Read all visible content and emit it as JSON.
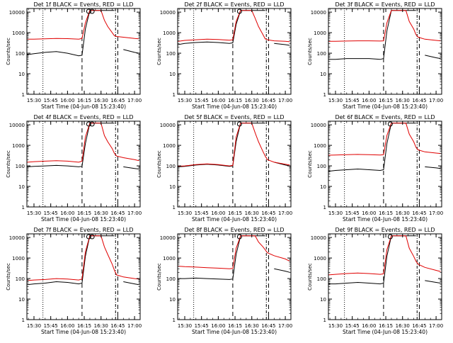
{
  "figure": {
    "background": "#ffffff",
    "axis_color": "#000000",
    "events_color": "#000000",
    "lld_color": "#e00000"
  },
  "chart_data": [
    {
      "type": "line",
      "title": "Det 1f BLACK = Events, RED = LLD",
      "xlabel": "Start Time (04-Jun-08 15:23:40)",
      "ylabel": "Counts/sec",
      "yscale": "log",
      "ylim": [
        1,
        15000
      ],
      "xlim": [
        "15:23:40",
        "17:05:00"
      ],
      "x_ticks": [
        "15:30",
        "15:45",
        "16:00",
        "16:15",
        "16:30",
        "16:45",
        "17:00"
      ],
      "y_ticks": [
        "1",
        "10",
        "100",
        "1000",
        "10000"
      ],
      "x": [
        "15:24",
        "15:30",
        "15:40",
        "15:50",
        "16:00",
        "16:10",
        "16:13",
        "16:16",
        "16:20",
        "16:27",
        "16:30",
        "16:33",
        "16:36",
        "16:40",
        "16:42",
        "16:44",
        "16:50",
        "17:00",
        "17:04"
      ],
      "series": [
        {
          "name": "Events",
          "color": "#000000",
          "values": [
            85,
            95,
            110,
            120,
            100,
            75,
            80,
            1500,
            12000,
            12000,
            12000,
            12000,
            12000,
            12000,
            12000,
            null,
            150,
            110,
            100
          ]
        },
        {
          "name": "LLD",
          "color": "#e00000",
          "values": [
            480,
            480,
            500,
            520,
            510,
            480,
            520,
            3000,
            12000,
            12000,
            12000,
            4000,
            2000,
            1000,
            700,
            650,
            600,
            520,
            500
          ]
        }
      ],
      "markers": {
        "dotted": [
          "15:38"
        ],
        "dashed": [
          "16:13",
          "16:45"
        ],
        "dash_dot": [
          "16:43"
        ],
        "circles": [
          "16:19",
          "16:22"
        ]
      }
    },
    {
      "type": "line",
      "title": "Det 2f BLACK = Events, RED = LLD",
      "xlabel": "Start Time (04-Jun-08 15:23:40)",
      "ylabel": "Counts/sec",
      "yscale": "log",
      "ylim": [
        1,
        15000
      ],
      "xlim": [
        "15:23:40",
        "17:05:00"
      ],
      "x_ticks": [
        "15:30",
        "15:45",
        "16:00",
        "16:15",
        "16:30",
        "16:45",
        "17:00"
      ],
      "y_ticks": [
        "1",
        "10",
        "100",
        "1000",
        "10000"
      ],
      "x": [
        "15:24",
        "15:30",
        "15:40",
        "15:50",
        "16:00",
        "16:10",
        "16:13",
        "16:16",
        "16:20",
        "16:27",
        "16:30",
        "16:33",
        "16:36",
        "16:40",
        "16:42",
        "16:44",
        "16:50",
        "17:00",
        "17:04"
      ],
      "series": [
        {
          "name": "Events",
          "color": "#000000",
          "values": [
            260,
            300,
            330,
            350,
            330,
            300,
            320,
            2500,
            12000,
            12000,
            12000,
            12000,
            12000,
            12000,
            12000,
            null,
            300,
            260,
            240
          ]
        },
        {
          "name": "LLD",
          "color": "#e00000",
          "values": [
            380,
            420,
            450,
            480,
            460,
            430,
            450,
            3500,
            12000,
            12000,
            12000,
            5000,
            2000,
            800,
            500,
            450,
            400,
            380,
            360
          ]
        }
      ],
      "markers": {
        "dotted": [
          "15:38"
        ],
        "dashed": [
          "16:13",
          "16:45"
        ],
        "dash_dot": [
          "16:43"
        ],
        "circles": [
          "16:19"
        ]
      }
    },
    {
      "type": "line",
      "title": "Det 3f BLACK = Events, RED = LLD",
      "xlabel": "Start Time (04-Jun-08 15:23:40)",
      "ylabel": "Counts/sec",
      "yscale": "log",
      "ylim": [
        1,
        15000
      ],
      "xlim": [
        "15:23:40",
        "17:05:00"
      ],
      "x_ticks": [
        "15:30",
        "15:45",
        "16:00",
        "16:15",
        "16:30",
        "16:45",
        "17:00"
      ],
      "y_ticks": [
        "1",
        "10",
        "100",
        "1000",
        "10000"
      ],
      "x": [
        "15:24",
        "15:30",
        "15:40",
        "15:50",
        "16:00",
        "16:10",
        "16:13",
        "16:16",
        "16:20",
        "16:27",
        "16:30",
        "16:33",
        "16:36",
        "16:40",
        "16:42",
        "16:44",
        "16:50",
        "17:00",
        "17:04"
      ],
      "series": [
        {
          "name": "Events",
          "color": "#000000",
          "values": [
            50,
            50,
            55,
            55,
            55,
            50,
            55,
            1200,
            12000,
            12000,
            12000,
            12000,
            12000,
            12000,
            12000,
            null,
            80,
            60,
            55
          ]
        },
        {
          "name": "LLD",
          "color": "#e00000",
          "values": [
            380,
            380,
            390,
            400,
            400,
            390,
            400,
            3000,
            12000,
            12000,
            12000,
            12000,
            3500,
            1500,
            800,
            600,
            480,
            420,
            400
          ]
        }
      ],
      "markers": {
        "dotted": [
          "15:38"
        ],
        "dashed": [
          "16:13",
          "16:45"
        ],
        "dash_dot": [
          "16:43"
        ],
        "circles": []
      }
    },
    {
      "type": "line",
      "title": "Det 4f BLACK = Events, RED = LLD",
      "xlabel": "Start Time (04-Jun-08 15:23:40)",
      "ylabel": "Counts/sec",
      "yscale": "log",
      "ylim": [
        1,
        15000
      ],
      "xlim": [
        "15:23:40",
        "17:05:00"
      ],
      "x_ticks": [
        "15:30",
        "15:45",
        "16:00",
        "16:15",
        "16:30",
        "16:45",
        "17:00"
      ],
      "y_ticks": [
        "1",
        "10",
        "100",
        "1000",
        "10000"
      ],
      "x": [
        "15:24",
        "15:30",
        "15:40",
        "15:50",
        "16:00",
        "16:10",
        "16:13",
        "16:16",
        "16:20",
        "16:27",
        "16:30",
        "16:33",
        "16:36",
        "16:40",
        "16:42",
        "16:44",
        "16:50",
        "17:00",
        "17:04"
      ],
      "series": [
        {
          "name": "Events",
          "color": "#000000",
          "values": [
            90,
            95,
            100,
            105,
            100,
            90,
            95,
            1200,
            12000,
            12000,
            12000,
            12000,
            12000,
            12000,
            12000,
            null,
            90,
            75,
            70
          ]
        },
        {
          "name": "LLD",
          "color": "#e00000",
          "values": [
            150,
            160,
            170,
            180,
            170,
            150,
            170,
            2500,
            12000,
            12000,
            12000,
            3000,
            1500,
            700,
            400,
            300,
            250,
            200,
            180
          ]
        }
      ],
      "markers": {
        "dotted": [
          "15:38"
        ],
        "dashed": [
          "16:13",
          "16:45"
        ],
        "dash_dot": [
          "16:43"
        ],
        "circles": [
          "16:19",
          "16:22"
        ]
      }
    },
    {
      "type": "line",
      "title": "Det 5f BLACK = Events, RED = LLD",
      "xlabel": "Start Time (04-Jun-08 15:23:40)",
      "ylabel": "Counts/sec",
      "yscale": "log",
      "ylim": [
        1,
        15000
      ],
      "xlim": [
        "15:23:40",
        "17:05:00"
      ],
      "x_ticks": [
        "15:30",
        "15:45",
        "16:00",
        "16:15",
        "16:30",
        "16:45",
        "17:00"
      ],
      "y_ticks": [
        "1",
        "10",
        "100",
        "1000",
        "10000"
      ],
      "x": [
        "15:24",
        "15:30",
        "15:40",
        "15:50",
        "16:00",
        "16:10",
        "16:13",
        "16:16",
        "16:20",
        "16:27",
        "16:30",
        "16:33",
        "16:36",
        "16:40",
        "16:42",
        "16:44",
        "16:50",
        "17:00",
        "17:04"
      ],
      "series": [
        {
          "name": "Events",
          "color": "#000000",
          "values": [
            90,
            95,
            110,
            120,
            110,
            95,
            100,
            1500,
            12000,
            12000,
            12000,
            12000,
            12000,
            12000,
            12000,
            null,
            150,
            110,
            100
          ]
        },
        {
          "name": "LLD",
          "color": "#e00000",
          "values": [
            95,
            100,
            115,
            125,
            115,
            100,
            105,
            2500,
            12000,
            12000,
            12000,
            4000,
            1500,
            500,
            300,
            200,
            150,
            120,
            110
          ]
        }
      ],
      "markers": {
        "dotted": [
          "15:38"
        ],
        "dashed": [
          "16:13",
          "16:45"
        ],
        "dash_dot": [
          "16:43"
        ],
        "circles": [
          "16:19"
        ]
      }
    },
    {
      "type": "line",
      "title": "Det 6f BLACK = Events, RED = LLD",
      "xlabel": "Start Time (04-Jun-08 15:23:40)",
      "ylabel": "Counts/sec",
      "yscale": "log",
      "ylim": [
        1,
        15000
      ],
      "xlim": [
        "15:23:40",
        "17:05:00"
      ],
      "x_ticks": [
        "15:30",
        "15:45",
        "16:00",
        "16:15",
        "16:30",
        "16:45",
        "17:00"
      ],
      "y_ticks": [
        "1",
        "10",
        "100",
        "1000",
        "10000"
      ],
      "x": [
        "15:24",
        "15:30",
        "15:40",
        "15:50",
        "16:00",
        "16:10",
        "16:13",
        "16:16",
        "16:20",
        "16:27",
        "16:30",
        "16:33",
        "16:36",
        "16:40",
        "16:42",
        "16:44",
        "16:50",
        "17:00",
        "17:04"
      ],
      "series": [
        {
          "name": "Events",
          "color": "#000000",
          "values": [
            55,
            60,
            65,
            70,
            65,
            60,
            65,
            1200,
            12000,
            12000,
            12000,
            12000,
            12000,
            12000,
            12000,
            null,
            90,
            80,
            75
          ]
        },
        {
          "name": "LLD",
          "color": "#e00000",
          "values": [
            330,
            340,
            350,
            360,
            350,
            340,
            350,
            3000,
            12000,
            12000,
            12000,
            12000,
            3500,
            1500,
            800,
            600,
            480,
            420,
            400
          ]
        }
      ],
      "markers": {
        "dotted": [
          "15:38"
        ],
        "dashed": [
          "16:13",
          "16:45"
        ],
        "dash_dot": [
          "16:43"
        ],
        "circles": [
          "16:19"
        ]
      }
    },
    {
      "type": "line",
      "title": "Det 7f BLACK = Events, RED = LLD",
      "xlabel": "Start Time (04-Jun-08 15:23:40)",
      "ylabel": "Counts/sec",
      "yscale": "log",
      "ylim": [
        1,
        15000
      ],
      "xlim": [
        "15:23:40",
        "17:05:00"
      ],
      "x_ticks": [
        "15:30",
        "15:45",
        "16:00",
        "16:15",
        "16:30",
        "16:45",
        "17:00"
      ],
      "y_ticks": [
        "1",
        "10",
        "100",
        "1000",
        "10000"
      ],
      "x": [
        "15:24",
        "15:30",
        "15:40",
        "15:50",
        "16:00",
        "16:10",
        "16:13",
        "16:16",
        "16:20",
        "16:27",
        "16:30",
        "16:33",
        "16:36",
        "16:40",
        "16:42",
        "16:44",
        "16:50",
        "17:00",
        "17:04"
      ],
      "series": [
        {
          "name": "Events",
          "color": "#000000",
          "values": [
            50,
            55,
            60,
            70,
            65,
            55,
            60,
            1200,
            12000,
            12000,
            12000,
            12000,
            12000,
            12000,
            12000,
            null,
            70,
            55,
            50
          ]
        },
        {
          "name": "LLD",
          "color": "#e00000",
          "values": [
            80,
            85,
            90,
            100,
            95,
            85,
            95,
            2000,
            12000,
            12000,
            12000,
            3500,
            1500,
            500,
            250,
            150,
            120,
            100,
            95
          ]
        }
      ],
      "markers": {
        "dotted": [
          "15:38"
        ],
        "dashed": [
          "16:13",
          "16:45"
        ],
        "dash_dot": [
          "16:43"
        ],
        "circles": [
          "16:19",
          "16:22"
        ]
      }
    },
    {
      "type": "line",
      "title": "Det 8f BLACK = Events, RED = LLD",
      "xlabel": "Start Time (04-Jun-08 15:23:40)",
      "ylabel": "Counts/sec",
      "yscale": "log",
      "ylim": [
        1,
        15000
      ],
      "xlim": [
        "15:23:40",
        "17:05:00"
      ],
      "x_ticks": [
        "15:30",
        "15:45",
        "16:00",
        "16:15",
        "16:30",
        "16:45",
        "17:00"
      ],
      "y_ticks": [
        "1",
        "10",
        "100",
        "1000",
        "10000"
      ],
      "x": [
        "15:24",
        "15:30",
        "15:40",
        "15:50",
        "16:00",
        "16:10",
        "16:13",
        "16:16",
        "16:20",
        "16:27",
        "16:30",
        "16:33",
        "16:36",
        "16:40",
        "16:42",
        "16:44",
        "16:50",
        "17:00",
        "17:04"
      ],
      "series": [
        {
          "name": "Events",
          "color": "#000000",
          "values": [
            100,
            100,
            105,
            100,
            95,
            90,
            95,
            1500,
            12000,
            12000,
            12000,
            12000,
            12000,
            12000,
            12000,
            null,
            300,
            230,
            200
          ]
        },
        {
          "name": "LLD",
          "color": "#e00000",
          "values": [
            400,
            380,
            360,
            340,
            320,
            300,
            310,
            3000,
            12000,
            12000,
            12000,
            12000,
            6000,
            3500,
            2500,
            1800,
            1300,
            900,
            700
          ]
        }
      ],
      "markers": {
        "dotted": [
          "15:38"
        ],
        "dashed": [
          "16:13",
          "16:45"
        ],
        "dash_dot": [
          "16:43"
        ],
        "circles": [
          "16:19"
        ]
      }
    },
    {
      "type": "line",
      "title": "Det 9f BLACK = Events, RED = LLD",
      "xlabel": "Start Time (04-Jun-08 15:23:40)",
      "ylabel": "Counts/sec",
      "yscale": "log",
      "ylim": [
        1,
        15000
      ],
      "xlim": [
        "15:23:40",
        "17:05:00"
      ],
      "x_ticks": [
        "15:30",
        "15:45",
        "16:00",
        "16:15",
        "16:30",
        "16:45",
        "17:00"
      ],
      "y_ticks": [
        "1",
        "10",
        "100",
        "1000",
        "10000"
      ],
      "x": [
        "15:24",
        "15:30",
        "15:40",
        "15:50",
        "16:00",
        "16:10",
        "16:13",
        "16:16",
        "16:20",
        "16:27",
        "16:30",
        "16:33",
        "16:36",
        "16:40",
        "16:42",
        "16:44",
        "16:50",
        "17:00",
        "17:04"
      ],
      "series": [
        {
          "name": "Events",
          "color": "#000000",
          "values": [
            55,
            55,
            60,
            65,
            60,
            55,
            60,
            1200,
            12000,
            12000,
            12000,
            12000,
            12000,
            12000,
            12000,
            null,
            80,
            65,
            60
          ]
        },
        {
          "name": "LLD",
          "color": "#e00000",
          "values": [
            150,
            160,
            175,
            185,
            175,
            160,
            170,
            2500,
            12000,
            12000,
            12000,
            12000,
            3000,
            1200,
            700,
            500,
            350,
            250,
            220
          ]
        }
      ],
      "markers": {
        "dotted": [
          "15:38"
        ],
        "dashed": [
          "16:13",
          "16:45"
        ],
        "dash_dot": [
          "16:43"
        ],
        "circles": [
          "16:19"
        ]
      }
    }
  ]
}
